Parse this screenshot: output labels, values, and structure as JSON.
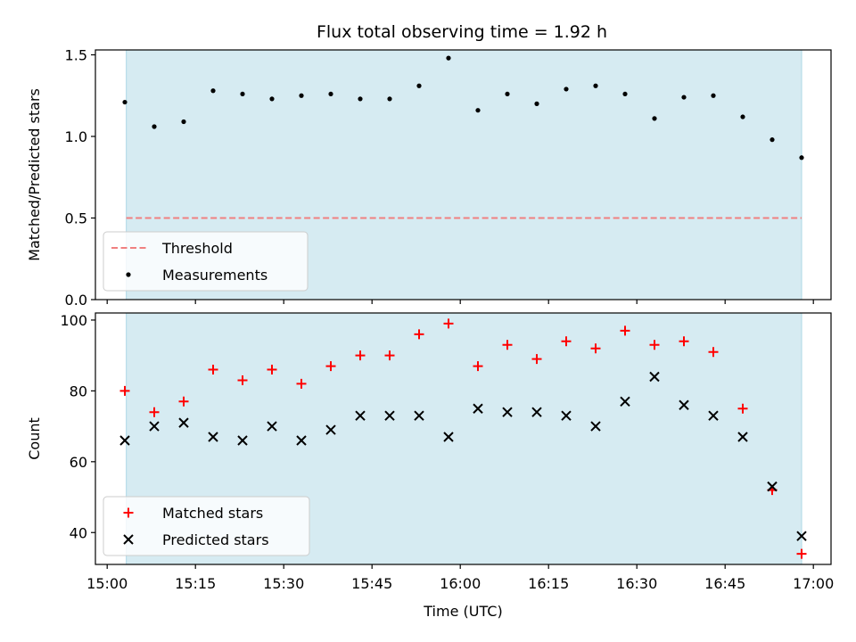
{
  "title": "Flux total observing time = 1.92 h",
  "colors": {
    "shade": "#add8e6",
    "threshold": "#f08080",
    "measurement": "#000000",
    "matched": "#ff0000",
    "predicted": "#000000"
  },
  "chart_data": [
    {
      "type": "scatter",
      "ylabel": "Matched/Predicted stars",
      "ylim": [
        0,
        1.53
      ],
      "yticks": [
        "0.0",
        "0.5",
        "1.0",
        "1.5"
      ],
      "ytick_values": [
        0,
        0.5,
        1.0,
        1.5
      ],
      "xlim": [
        "14:58",
        "17:03"
      ],
      "shaded_span": [
        "15:03:15",
        "16:58:00"
      ],
      "threshold": {
        "value": 0.5,
        "from": "15:03:15",
        "to": "16:58:00"
      },
      "legend": {
        "placement": "lower-left",
        "entries": [
          "Threshold",
          "Measurements"
        ]
      },
      "series": [
        {
          "name": "Measurements",
          "x": [
            "15:03",
            "15:08",
            "15:13",
            "15:18",
            "15:23",
            "15:28",
            "15:33",
            "15:38",
            "15:43",
            "15:48",
            "15:53",
            "15:58",
            "16:03",
            "16:08",
            "16:13",
            "16:18",
            "16:23",
            "16:28",
            "16:33",
            "16:38",
            "16:43",
            "16:48",
            "16:53",
            "16:58"
          ],
          "values": [
            1.21,
            1.06,
            1.09,
            1.28,
            1.26,
            1.23,
            1.25,
            1.26,
            1.23,
            1.23,
            1.31,
            1.48,
            1.16,
            1.26,
            1.2,
            1.29,
            1.31,
            1.26,
            1.11,
            1.24,
            1.25,
            1.12,
            0.98,
            0.87
          ]
        }
      ]
    },
    {
      "type": "scatter",
      "ylabel": "Count",
      "xlabel": "Time (UTC)",
      "ylim": [
        31,
        102
      ],
      "yticks": [
        "40",
        "60",
        "80",
        "100"
      ],
      "ytick_values": [
        40,
        60,
        80,
        100
      ],
      "xlim": [
        "14:58",
        "17:03"
      ],
      "xticks": [
        "15:00",
        "15:15",
        "15:30",
        "15:45",
        "16:00",
        "16:15",
        "16:30",
        "16:45",
        "17:00"
      ],
      "shaded_span": [
        "15:03:15",
        "16:58:00"
      ],
      "legend": {
        "placement": "lower-left",
        "entries": [
          "Matched stars",
          "Predicted stars"
        ]
      },
      "series": [
        {
          "name": "Matched stars",
          "x": [
            "15:03",
            "15:08",
            "15:13",
            "15:18",
            "15:23",
            "15:28",
            "15:33",
            "15:38",
            "15:43",
            "15:48",
            "15:53",
            "15:58",
            "16:03",
            "16:08",
            "16:13",
            "16:18",
            "16:23",
            "16:28",
            "16:33",
            "16:38",
            "16:43",
            "16:48",
            "16:53",
            "16:58"
          ],
          "values": [
            80,
            74,
            77,
            86,
            83,
            86,
            82,
            87,
            90,
            90,
            96,
            99,
            87,
            93,
            89,
            94,
            92,
            97,
            93,
            94,
            91,
            75,
            52,
            34
          ]
        },
        {
          "name": "Predicted stars",
          "x": [
            "15:03",
            "15:08",
            "15:13",
            "15:18",
            "15:23",
            "15:28",
            "15:33",
            "15:38",
            "15:43",
            "15:48",
            "15:53",
            "15:58",
            "16:03",
            "16:08",
            "16:13",
            "16:18",
            "16:23",
            "16:28",
            "16:33",
            "16:38",
            "16:43",
            "16:48",
            "16:53",
            "16:58"
          ],
          "values": [
            66,
            70,
            71,
            67,
            66,
            70,
            66,
            69,
            73,
            73,
            73,
            67,
            75,
            74,
            74,
            73,
            70,
            77,
            84,
            76,
            73,
            67,
            53,
            39
          ]
        }
      ]
    }
  ]
}
